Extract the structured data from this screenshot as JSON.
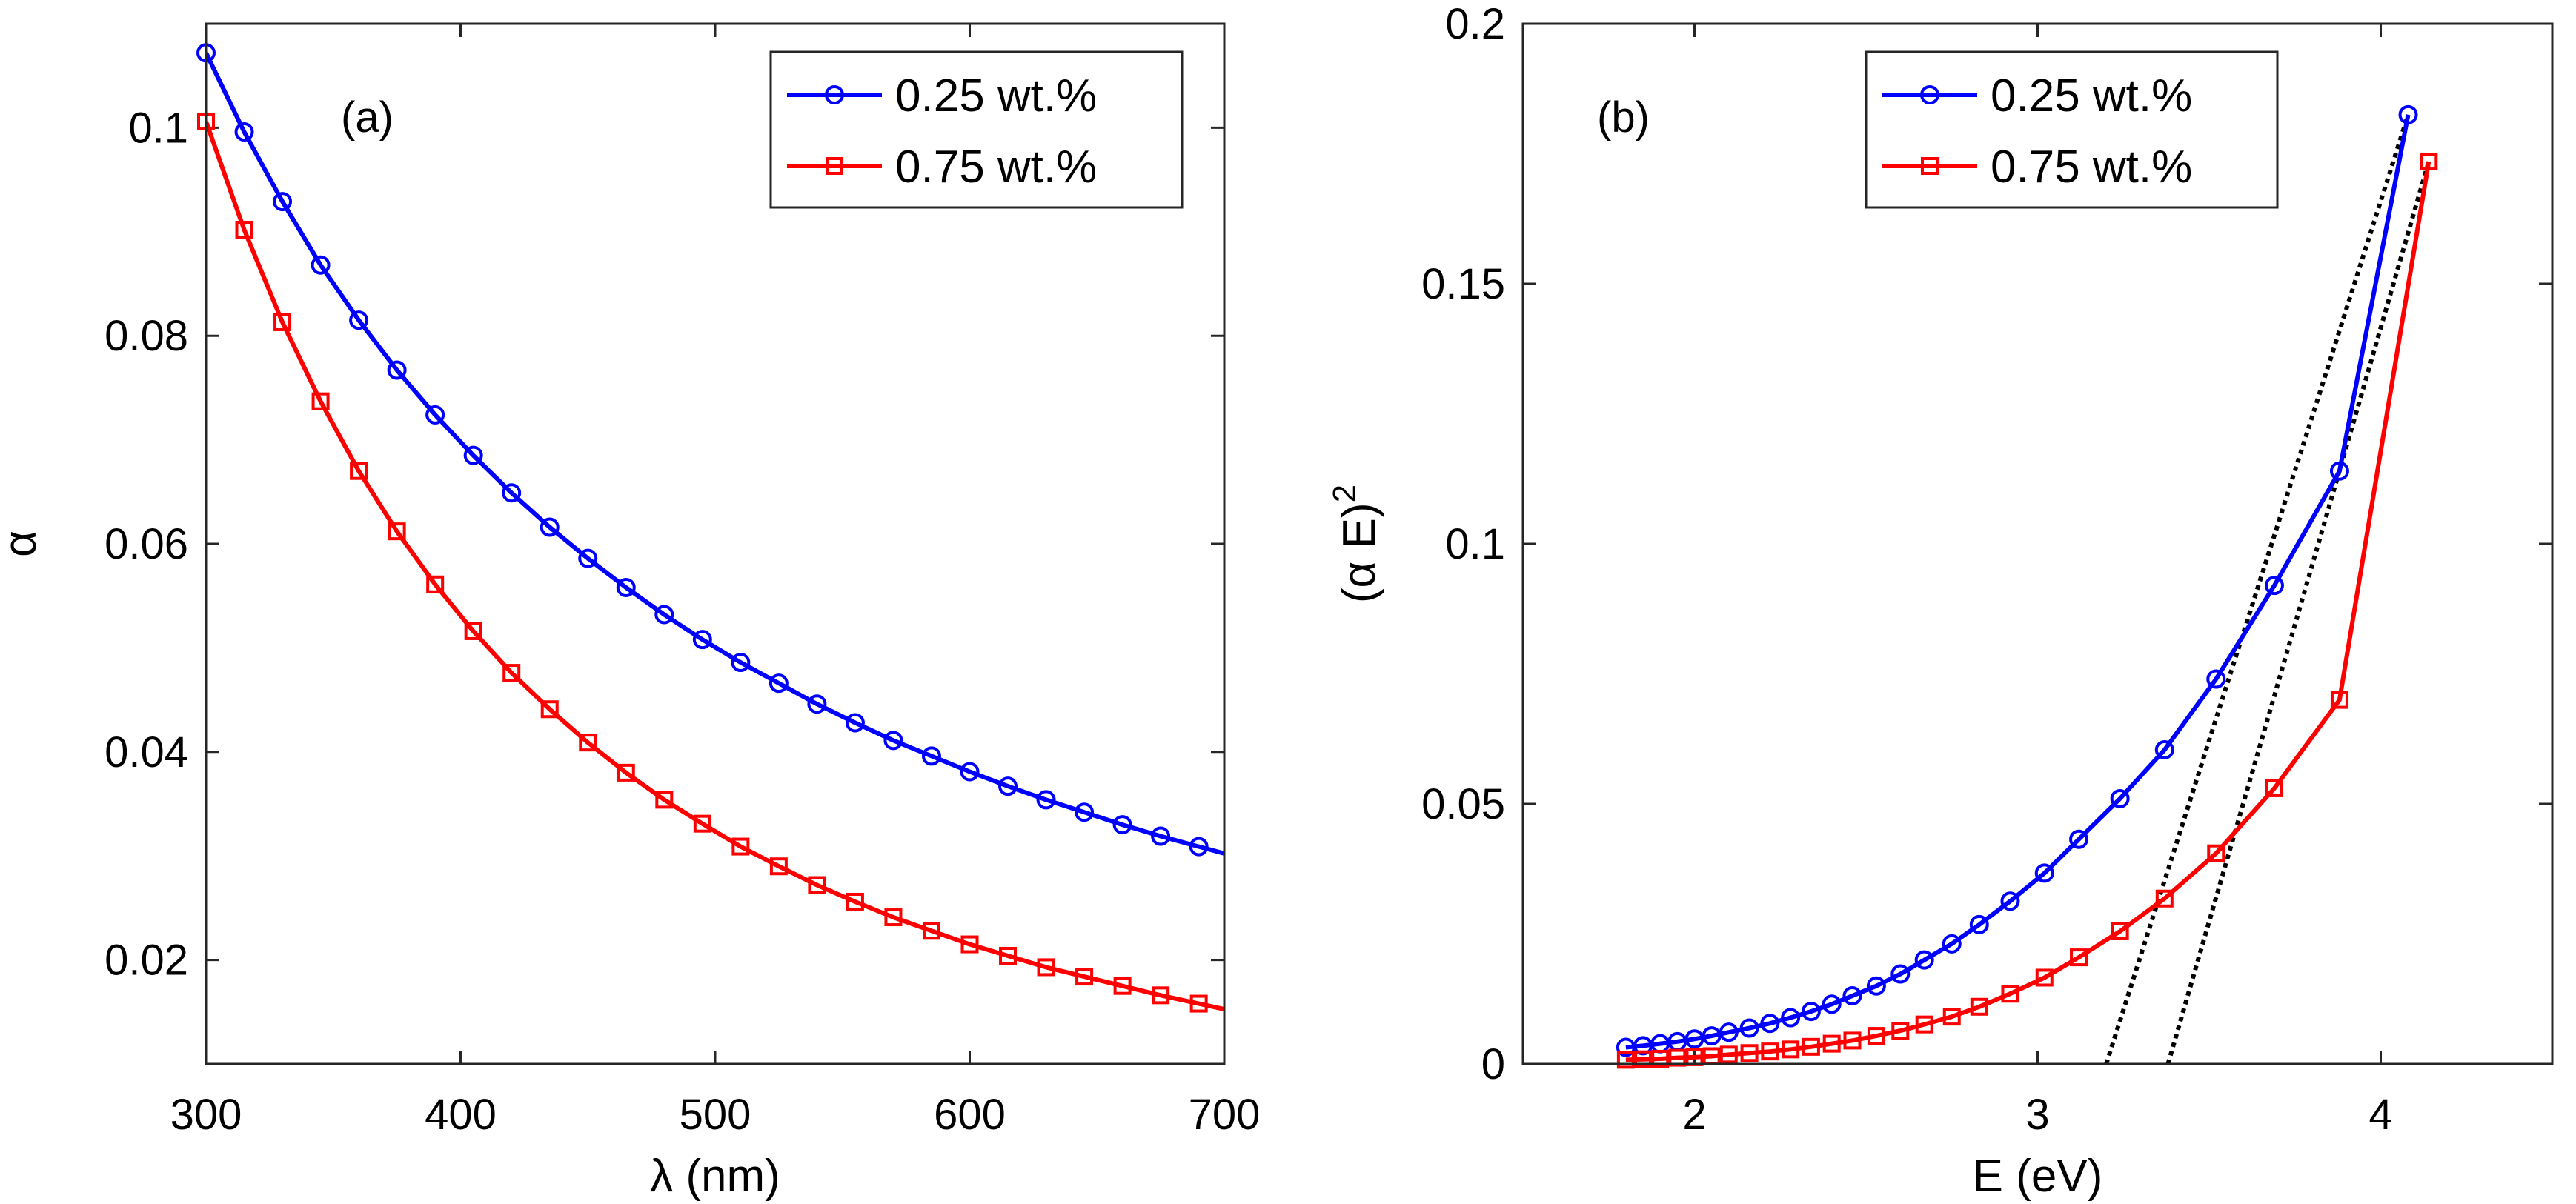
{
  "chart_data": [
    {
      "type": "line",
      "panel": "(a)",
      "xlabel": "λ (nm)",
      "ylabel": "α",
      "xlim": [
        300,
        700
      ],
      "ylim": [
        0.01,
        0.11
      ],
      "xticks": [
        300,
        400,
        500,
        600,
        700
      ],
      "yticks": [
        0.02,
        0.04,
        0.06,
        0.08,
        0.1
      ],
      "xtick_labels": [
        "300",
        "400",
        "500",
        "600",
        "700"
      ],
      "ytick_labels": [
        "0.02",
        "0.04",
        "0.06",
        "0.08",
        "0.1"
      ],
      "legend_position": "top-right",
      "series": [
        {
          "name": "0.25 wt.%",
          "color": "#0000ff",
          "marker": "circle",
          "x": [
            300,
            315,
            330,
            345,
            360,
            375,
            390,
            405,
            420,
            435,
            450,
            465,
            480,
            495,
            510,
            525,
            540,
            555,
            570,
            585,
            600,
            615,
            630,
            645,
            660,
            675,
            690
          ],
          "y": [
            0.1072,
            0.0996,
            0.0929,
            0.0868,
            0.0815,
            0.0767,
            0.0724,
            0.0685,
            0.0649,
            0.0616,
            0.0586,
            0.0558,
            0.0532,
            0.0508,
            0.0486,
            0.0466,
            0.0446,
            0.0428,
            0.0411,
            0.0396,
            0.0381,
            0.0367,
            0.0354,
            0.0342,
            0.033,
            0.0319,
            0.0309
          ]
        },
        {
          "name": "0.75 wt.%",
          "color": "#ff0000",
          "marker": "square",
          "x": [
            300,
            315,
            330,
            345,
            360,
            375,
            390,
            405,
            420,
            435,
            450,
            465,
            480,
            495,
            510,
            525,
            540,
            555,
            570,
            585,
            600,
            615,
            630,
            645,
            660,
            675,
            690
          ],
          "y": [
            0.1006,
            0.0902,
            0.0813,
            0.0737,
            0.067,
            0.0612,
            0.0561,
            0.0516,
            0.0476,
            0.0441,
            0.0409,
            0.038,
            0.0354,
            0.0331,
            0.0309,
            0.029,
            0.0272,
            0.0256,
            0.0241,
            0.0228,
            0.0215,
            0.0204,
            0.0193,
            0.0184,
            0.0175,
            0.0166,
            0.0158
          ]
        }
      ]
    },
    {
      "type": "line",
      "panel": "(b)",
      "xlabel": "E (eV)",
      "ylabel": "(α E)",
      "ylabel_superscript": "2",
      "xlim": [
        1.5,
        4.5
      ],
      "ylim": [
        0,
        0.2
      ],
      "xticks": [
        2,
        3,
        4
      ],
      "yticks": [
        0,
        0.05,
        0.1,
        0.15,
        0.2
      ],
      "xtick_labels": [
        "2",
        "3",
        "4"
      ],
      "ytick_labels": [
        "0",
        "0.05",
        "0.1",
        "0.15",
        "0.2"
      ],
      "legend_position": "top-left",
      "series": [
        {
          "name": "0.25 wt.%",
          "color": "#0000ff",
          "marker": "circle",
          "x": [
            1.8,
            1.85,
            1.9,
            1.95,
            2.0,
            2.05,
            2.1,
            2.16,
            2.22,
            2.28,
            2.34,
            2.4,
            2.46,
            2.53,
            2.6,
            2.67,
            2.75,
            2.83,
            2.92,
            3.02,
            3.12,
            3.24,
            3.37,
            3.52,
            3.69,
            3.88,
            4.08
          ],
          "y": [
            0.0032,
            0.0035,
            0.0039,
            0.0043,
            0.0048,
            0.0054,
            0.0061,
            0.0069,
            0.0078,
            0.0089,
            0.0101,
            0.0115,
            0.0131,
            0.015,
            0.0173,
            0.02,
            0.0231,
            0.0268,
            0.0313,
            0.0367,
            0.0432,
            0.051,
            0.0604,
            0.074,
            0.092,
            0.114,
            0.1825
          ]
        },
        {
          "name": "0.75 wt.%",
          "color": "#ff0000",
          "marker": "square",
          "x": [
            1.8,
            1.85,
            1.9,
            1.95,
            2.0,
            2.05,
            2.1,
            2.16,
            2.22,
            2.28,
            2.34,
            2.4,
            2.46,
            2.53,
            2.6,
            2.67,
            2.75,
            2.83,
            2.92,
            3.02,
            3.12,
            3.24,
            3.37,
            3.52,
            3.69,
            3.88,
            4.14
          ],
          "y": [
            0.0008,
            0.0009,
            0.001,
            0.0012,
            0.0013,
            0.0015,
            0.0018,
            0.0021,
            0.0024,
            0.0028,
            0.0033,
            0.0039,
            0.0045,
            0.0054,
            0.0064,
            0.0076,
            0.0091,
            0.011,
            0.0135,
            0.0166,
            0.0205,
            0.0255,
            0.0318,
            0.0405,
            0.053,
            0.07,
            0.1735
          ]
        }
      ],
      "tangent_lines": [
        {
          "name": "tangent-0.25",
          "x": [
            3.2,
            4.08
          ],
          "y": [
            0,
            0.1825
          ],
          "style": "dotted",
          "color": "#000000"
        },
        {
          "name": "tangent-0.75",
          "x": [
            3.38,
            4.14
          ],
          "y": [
            0,
            0.1735
          ],
          "style": "dotted",
          "color": "#000000"
        }
      ]
    }
  ]
}
